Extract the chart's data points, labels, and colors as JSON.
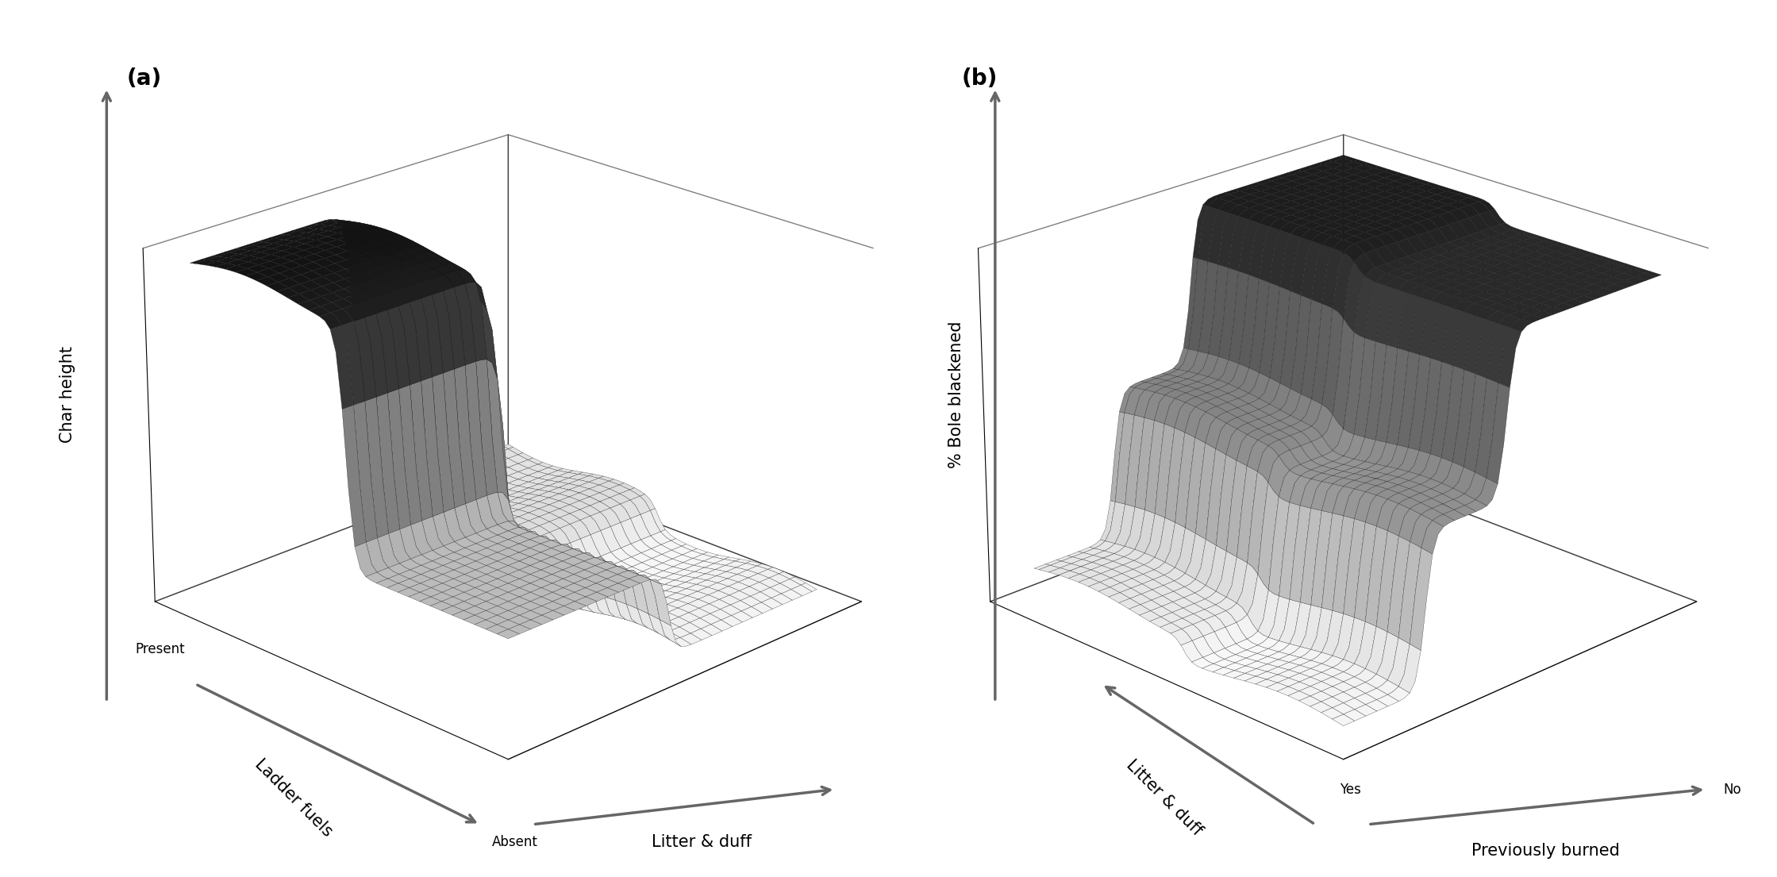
{
  "panel_a_label": "(a)",
  "panel_b_label": "(b)",
  "panel_a_zlabel": "Char height",
  "panel_a_xlabel": "Ladder fuels",
  "panel_a_ylabel": "Litter & duff",
  "panel_a_x_near": "Present",
  "panel_a_x_far": "Absent",
  "panel_b_zlabel": "% Bole blackened",
  "panel_b_xlabel": "Previously burned",
  "panel_b_ylabel": "Litter & duff",
  "panel_b_x_near": "Yes",
  "panel_b_x_far": "No",
  "n_grid": 60,
  "elev_a": 22,
  "azim_a": -135,
  "elev_b": 22,
  "azim_b": -135,
  "edge_color": "#111111",
  "cmap": "gray_r",
  "figsize": [
    22.39,
    11.05
  ],
  "dpi": 100,
  "label_fontsize": 14,
  "tick_fontsize": 12,
  "panel_label_fontsize": 20,
  "arrow_color": "#666666",
  "arrow_lw": 2.5
}
